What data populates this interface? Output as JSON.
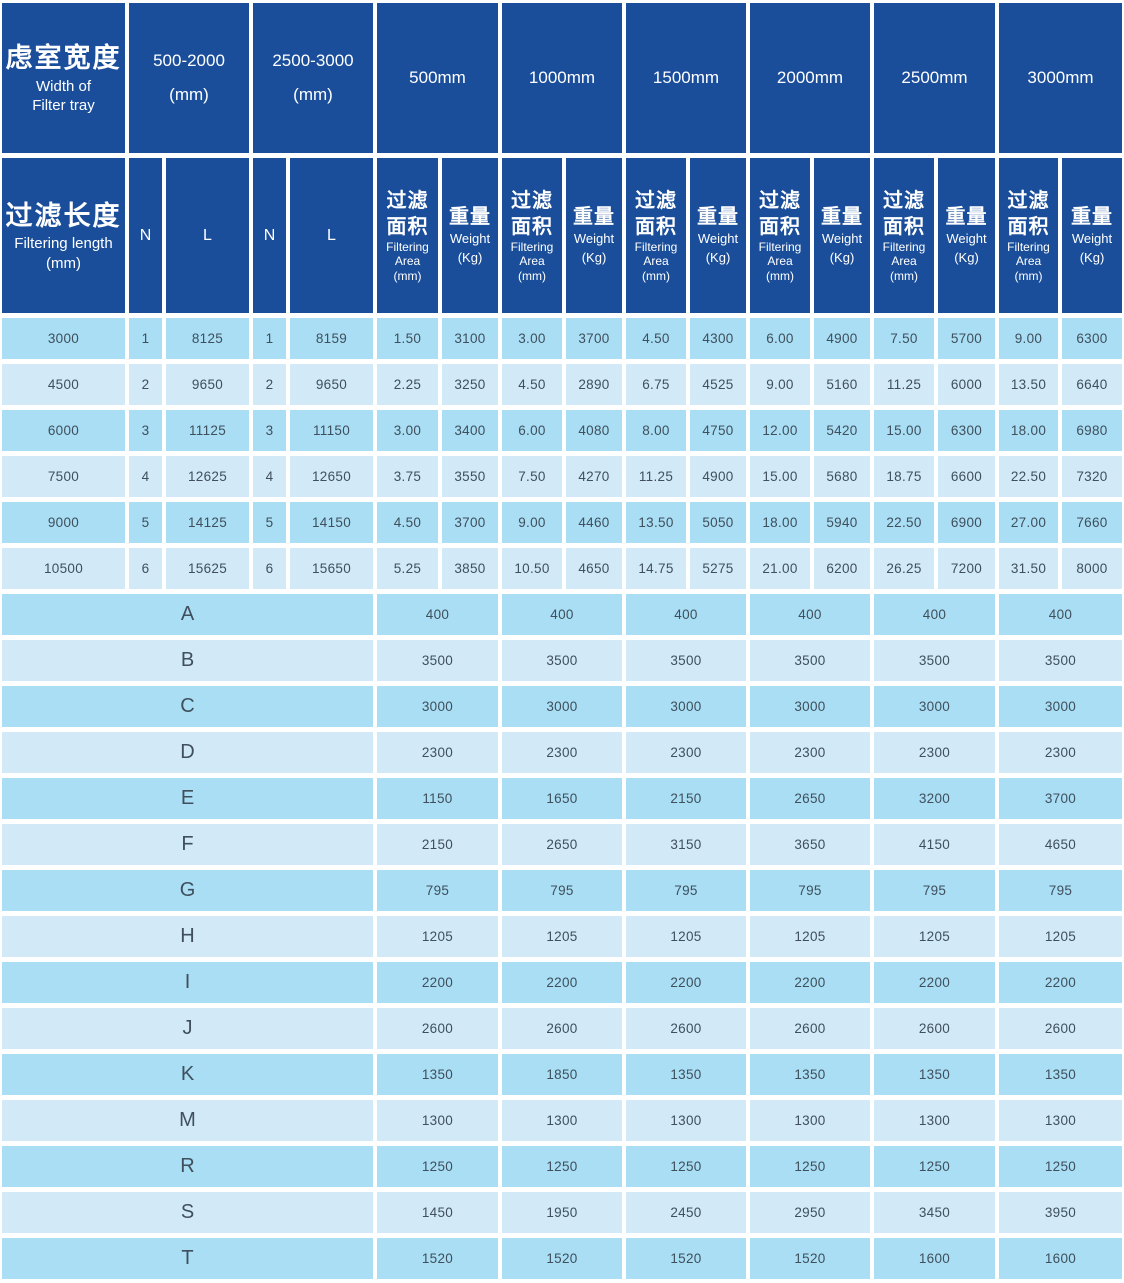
{
  "colors": {
    "header_bg": "#1a4e9b",
    "row_dark": "#a9def5",
    "row_light": "#d2eaf8",
    "cell_text": "#3f4f5b",
    "background": "#ffffff"
  },
  "header": {
    "width_title_zh": "虑室宽度",
    "width_title_en_1": "Width of",
    "width_title_en_2": "Filter tray",
    "width_ranges": [
      {
        "range": "500-2000",
        "unit": "(mm)"
      },
      {
        "range": "2500-3000",
        "unit": "(mm)"
      }
    ],
    "length_title_zh": "过滤长度",
    "length_title_en": "Filtering length",
    "length_unit": "(mm)",
    "nl_labels": [
      "N",
      "L",
      "N",
      "L"
    ],
    "mm_columns": [
      "500mm",
      "1000mm",
      "1500mm",
      "2000mm",
      "2500mm",
      "3000mm"
    ],
    "sub_headers": {
      "filtering_area_zh_1": "过滤",
      "filtering_area_zh_2": "面积",
      "filtering_area_en_1": "Filtering",
      "filtering_area_en_2": "Area",
      "filtering_area_unit": "(mm)",
      "weight_zh": "重量",
      "weight_en": "Weight",
      "weight_unit": "(Kg)"
    }
  },
  "data_rows": [
    [
      "3000",
      "1",
      "8125",
      "1",
      "8159",
      "1.50",
      "3100",
      "3.00",
      "3700",
      "4.50",
      "4300",
      "6.00",
      "4900",
      "7.50",
      "5700",
      "9.00",
      "6300"
    ],
    [
      "4500",
      "2",
      "9650",
      "2",
      "9650",
      "2.25",
      "3250",
      "4.50",
      "2890",
      "6.75",
      "4525",
      "9.00",
      "5160",
      "11.25",
      "6000",
      "13.50",
      "6640"
    ],
    [
      "6000",
      "3",
      "11125",
      "3",
      "11150",
      "3.00",
      "3400",
      "6.00",
      "4080",
      "8.00",
      "4750",
      "12.00",
      "5420",
      "15.00",
      "6300",
      "18.00",
      "6980"
    ],
    [
      "7500",
      "4",
      "12625",
      "4",
      "12650",
      "3.75",
      "3550",
      "7.50",
      "4270",
      "11.25",
      "4900",
      "15.00",
      "5680",
      "18.75",
      "6600",
      "22.50",
      "7320"
    ],
    [
      "9000",
      "5",
      "14125",
      "5",
      "14150",
      "4.50",
      "3700",
      "9.00",
      "4460",
      "13.50",
      "5050",
      "18.00",
      "5940",
      "22.50",
      "6900",
      "27.00",
      "7660"
    ],
    [
      "10500",
      "6",
      "15625",
      "6",
      "15650",
      "5.25",
      "3850",
      "10.50",
      "4650",
      "14.75",
      "5275",
      "21.00",
      "6200",
      "26.25",
      "7200",
      "31.50",
      "8000"
    ]
  ],
  "letter_rows": [
    {
      "label": "A",
      "values": [
        "400",
        "400",
        "400",
        "400",
        "400",
        "400"
      ]
    },
    {
      "label": "B",
      "values": [
        "3500",
        "3500",
        "3500",
        "3500",
        "3500",
        "3500"
      ]
    },
    {
      "label": "C",
      "values": [
        "3000",
        "3000",
        "3000",
        "3000",
        "3000",
        "3000"
      ]
    },
    {
      "label": "D",
      "values": [
        "2300",
        "2300",
        "2300",
        "2300",
        "2300",
        "2300"
      ]
    },
    {
      "label": "E",
      "values": [
        "1150",
        "1650",
        "2150",
        "2650",
        "3200",
        "3700"
      ]
    },
    {
      "label": "F",
      "values": [
        "2150",
        "2650",
        "3150",
        "3650",
        "4150",
        "4650"
      ]
    },
    {
      "label": "G",
      "values": [
        "795",
        "795",
        "795",
        "795",
        "795",
        "795"
      ]
    },
    {
      "label": "H",
      "values": [
        "1205",
        "1205",
        "1205",
        "1205",
        "1205",
        "1205"
      ]
    },
    {
      "label": "I",
      "values": [
        "2200",
        "2200",
        "2200",
        "2200",
        "2200",
        "2200"
      ]
    },
    {
      "label": "J",
      "values": [
        "2600",
        "2600",
        "2600",
        "2600",
        "2600",
        "2600"
      ]
    },
    {
      "label": "K",
      "values": [
        "1350",
        "1850",
        "1350",
        "1350",
        "1350",
        "1350"
      ]
    },
    {
      "label": "M",
      "values": [
        "1300",
        "1300",
        "1300",
        "1300",
        "1300",
        "1300"
      ]
    },
    {
      "label": "R",
      "values": [
        "1250",
        "1250",
        "1250",
        "1250",
        "1250",
        "1250"
      ]
    },
    {
      "label": "S",
      "values": [
        "1450",
        "1950",
        "2450",
        "2950",
        "3450",
        "3950"
      ]
    },
    {
      "label": "T",
      "values": [
        "1520",
        "1520",
        "1520",
        "1520",
        "1600",
        "1600"
      ]
    }
  ]
}
